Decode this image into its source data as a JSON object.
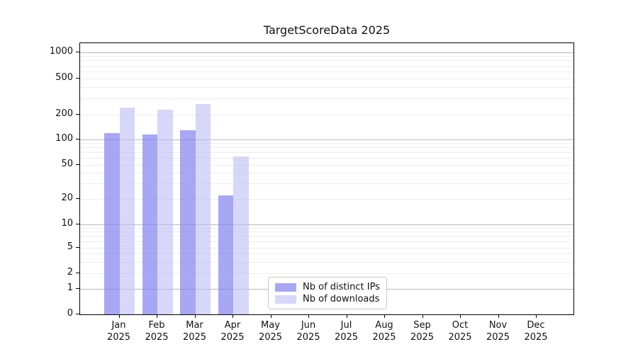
{
  "figure": {
    "background": "#ffffff",
    "spine_color": "#000000",
    "grid_minor_color": "#ededed",
    "grid_major_color": "#b8b8b8",
    "text_color": "#111111"
  },
  "chart_data": {
    "type": "bar",
    "title": "TargetScoreData 2025",
    "categories": [
      "Jan 2025",
      "Feb 2025",
      "Mar 2025",
      "Apr 2025",
      "May 2025",
      "Jun 2025",
      "Jul 2025",
      "Aug 2025",
      "Sep 2025",
      "Oct 2025",
      "Nov 2025",
      "Dec 2025"
    ],
    "series": [
      {
        "name": "Nb of distinct IPs",
        "color": "rgba(130,130,240,0.70)",
        "values": [
          120,
          114,
          130,
          22,
          0,
          0,
          0,
          0,
          0,
          0,
          0,
          0
        ]
      },
      {
        "name": "Nb of downloads",
        "color": "rgba(190,190,245,0.62)",
        "values": [
          240,
          228,
          262,
          63,
          0,
          0,
          0,
          0,
          0,
          0,
          0,
          0
        ]
      }
    ],
    "y_axis": {
      "scale": "symlog",
      "tick_values": [
        0,
        1,
        2,
        5,
        10,
        20,
        50,
        100,
        200,
        500,
        1000
      ],
      "tick_labels": [
        "0",
        "1",
        "2",
        "5",
        "10",
        "20",
        "50",
        "100",
        "200",
        "500",
        "1000"
      ],
      "ylim": [
        0,
        1280
      ],
      "grid": true
    },
    "x_axis": {
      "tick_label_line2": "2025"
    },
    "legend": {
      "position": "lower-center",
      "items": [
        "Nb of distinct IPs",
        "Nb of downloads"
      ]
    }
  }
}
